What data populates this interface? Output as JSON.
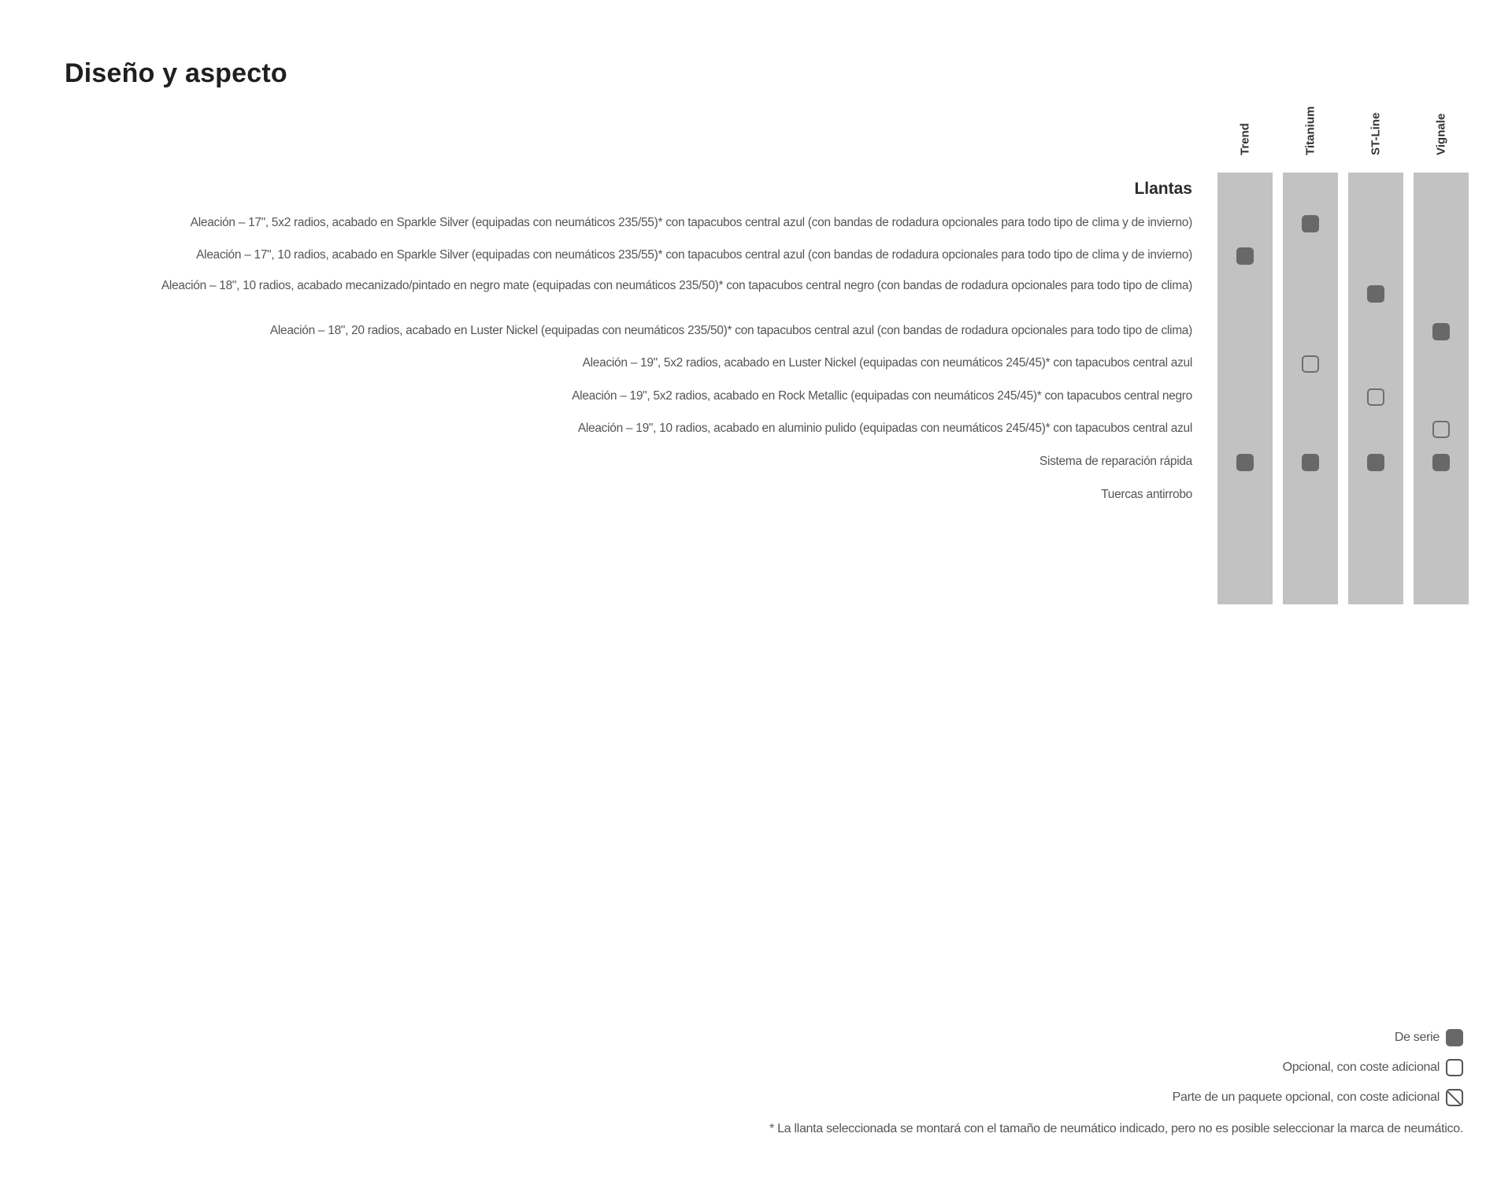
{
  "title": "Diseño y aspecto",
  "columns": [
    "Trend",
    "Titanium",
    "ST-Line",
    "Vignale"
  ],
  "section": "Llantas",
  "rows": [
    {
      "label": "Aleación – 17\", 5x2 radios, acabado en Sparkle Silver (equipadas con neumáticos 235/55)* con tapacubos central azul (con bandas de rodadura opcionales para todo tipo de clima y de invierno)",
      "marks": [
        "",
        "standard",
        "",
        ""
      ]
    },
    {
      "label": "Aleación – 17\", 10 radios, acabado en Sparkle Silver (equipadas con neumáticos 235/55)* con tapacubos central azul (con bandas de rodadura opcionales para todo tipo de clima y de invierno)",
      "marks": [
        "standard",
        "",
        "",
        ""
      ]
    },
    {
      "label": "Aleación – 18\", 10 radios, acabado mecanizado/pintado en negro mate (equipadas con neumáticos 235/50)* con tapacubos central negro (con bandas de rodadura opcionales para todo tipo de clima)",
      "marks": [
        "",
        "",
        "standard",
        ""
      ]
    },
    {
      "label": "Aleación – 18\", 20 radios, acabado en Luster Nickel (equipadas con neumáticos 235/50)* con tapacubos central azul (con bandas de rodadura opcionales para todo tipo de clima)",
      "marks": [
        "",
        "",
        "",
        "standard"
      ]
    },
    {
      "label": "Aleación – 19\", 5x2 radios, acabado en Luster Nickel (equipadas con neumáticos 245/45)* con tapacubos central azul",
      "marks": [
        "",
        "optional",
        "",
        ""
      ]
    },
    {
      "label": "Aleación – 19\", 5x2 radios, acabado en Rock Metallic (equipadas con neumáticos 245/45)* con tapacubos central negro",
      "marks": [
        "",
        "",
        "optional",
        ""
      ]
    },
    {
      "label": "Aleación – 19\", 10 radios, acabado en aluminio pulido (equipadas con neumáticos 245/45)* con tapacubos central azul",
      "marks": [
        "",
        "",
        "",
        "optional"
      ]
    },
    {
      "label": "Sistema de reparación rápida",
      "marks": [
        "standard",
        "standard",
        "standard",
        "standard"
      ]
    },
    {
      "label": "Tuercas antirrobo",
      "marks": [
        "",
        "",
        "",
        ""
      ]
    }
  ],
  "legend": {
    "standard": "De serie",
    "optional": "Opcional, con coste adicional",
    "package": "Parte de un paquete opcional, con coste adicional"
  },
  "footnote": "* La llanta seleccionada se montará con el tamaño de neumático indicado, pero no es posible seleccionar la marca de neumático.",
  "colors": {
    "column_bg": "#c2c2c2",
    "mark": "#686868"
  }
}
